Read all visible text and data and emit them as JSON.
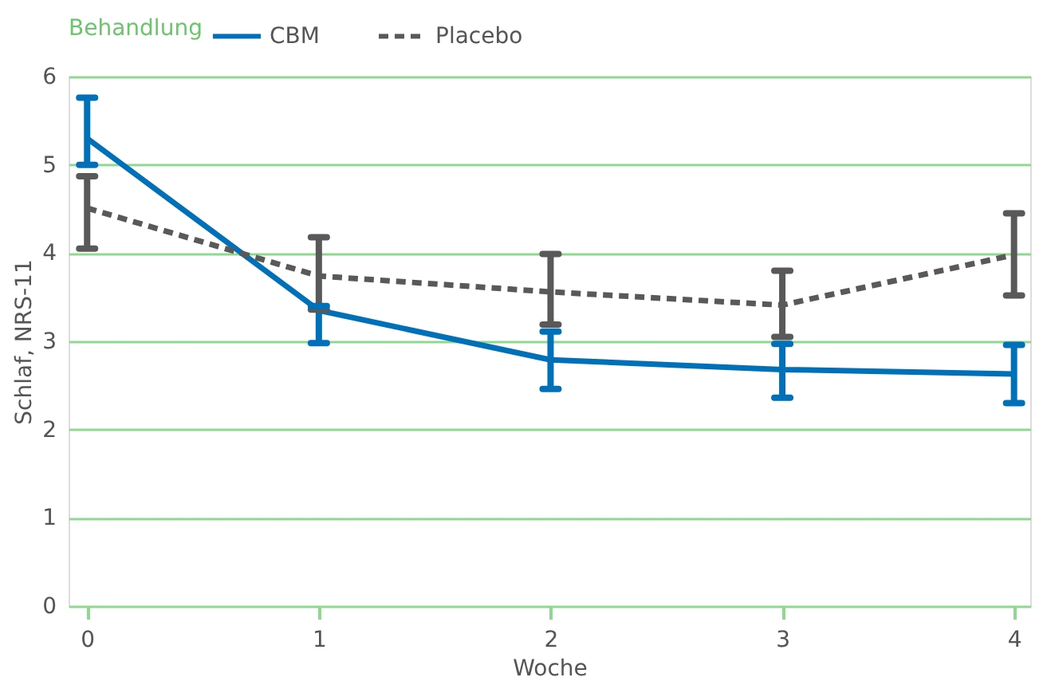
{
  "chart_data": {
    "type": "line",
    "xlabel": "Woche",
    "ylabel": "Schlaf, NRS-11",
    "legend_title": "Behandlung",
    "legend": "top",
    "x": [
      0,
      1,
      2,
      3,
      4
    ],
    "xlim": [
      -0.08,
      4.07
    ],
    "xticks": [
      0,
      1,
      2,
      3,
      4
    ],
    "ylim": [
      0,
      6
    ],
    "yticks": [
      0,
      1,
      2,
      3,
      4,
      5,
      6
    ],
    "grid": "y",
    "series": [
      {
        "name": "CBM",
        "color": "#0070b8",
        "line_style": "solid",
        "values": [
          5.3,
          3.35,
          2.79,
          2.68,
          2.63
        ],
        "errors": [
          [
            5.0,
            5.76
          ],
          [
            2.98,
            3.4
          ],
          [
            2.46,
            3.11
          ],
          [
            2.36,
            2.97
          ],
          [
            2.3,
            2.96
          ]
        ]
      },
      {
        "name": "Placebo",
        "color": "#595959",
        "line_style": "dashed",
        "values": [
          4.51,
          3.74,
          3.56,
          3.41,
          3.98
        ],
        "errors": [
          [
            4.05,
            4.87
          ],
          [
            3.36,
            4.18
          ],
          [
            3.19,
            3.99
          ],
          [
            3.05,
            3.8
          ],
          [
            3.52,
            4.45
          ]
        ]
      }
    ]
  }
}
